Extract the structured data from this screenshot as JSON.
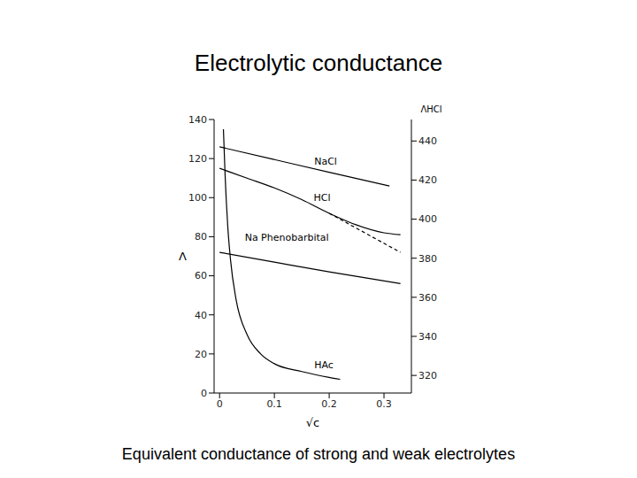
{
  "chart_data": {
    "type": "line",
    "title": "Electrolytic conductance",
    "subtitle": "Equivalent conductance of strong and weak electrolytes",
    "x_label": "√c",
    "y_label": "Λ",
    "y2_label": "ΛHCl",
    "xlim": [
      -0.01,
      0.35
    ],
    "xticks": [
      0,
      0.1,
      0.2,
      0.3
    ],
    "ylim": [
      0,
      140
    ],
    "yticks": [
      0,
      20,
      40,
      60,
      80,
      100,
      120,
      140
    ],
    "y2lim": [
      311,
      451
    ],
    "y2ticks": [
      320,
      340,
      360,
      380,
      400,
      420,
      440
    ],
    "grid": false,
    "series": [
      {
        "name": "NaCl",
        "color": "#000000",
        "x": [
          0,
          0.1,
          0.2,
          0.31
        ],
        "values": [
          126,
          119.5,
          113,
          106
        ]
      },
      {
        "name": "HCl",
        "color": "#000000",
        "axis": "y2",
        "x": [
          0,
          0.05,
          0.1,
          0.15,
          0.2,
          0.25,
          0.3,
          0.33
        ],
        "values": [
          426,
          421,
          416,
          410,
          403,
          397,
          393,
          392
        ]
      },
      {
        "color": "#000000",
        "axis": "y2",
        "line_style": "dashed",
        "x": [
          0.2,
          0.33
        ],
        "values": [
          403,
          383
        ]
      },
      {
        "name": "Na Phenobarbital",
        "color": "#000000",
        "x": [
          0,
          0.1,
          0.2,
          0.33
        ],
        "values": [
          72,
          67,
          62,
          56
        ]
      },
      {
        "name": "HAc",
        "color": "#000000",
        "x": [
          0.007,
          0.01,
          0.015,
          0.02,
          0.03,
          0.05,
          0.075,
          0.1,
          0.15,
          0.2,
          0.22
        ],
        "values": [
          135,
          112,
          85,
          68,
          48,
          30,
          20,
          15,
          11,
          8,
          7
        ]
      }
    ]
  }
}
